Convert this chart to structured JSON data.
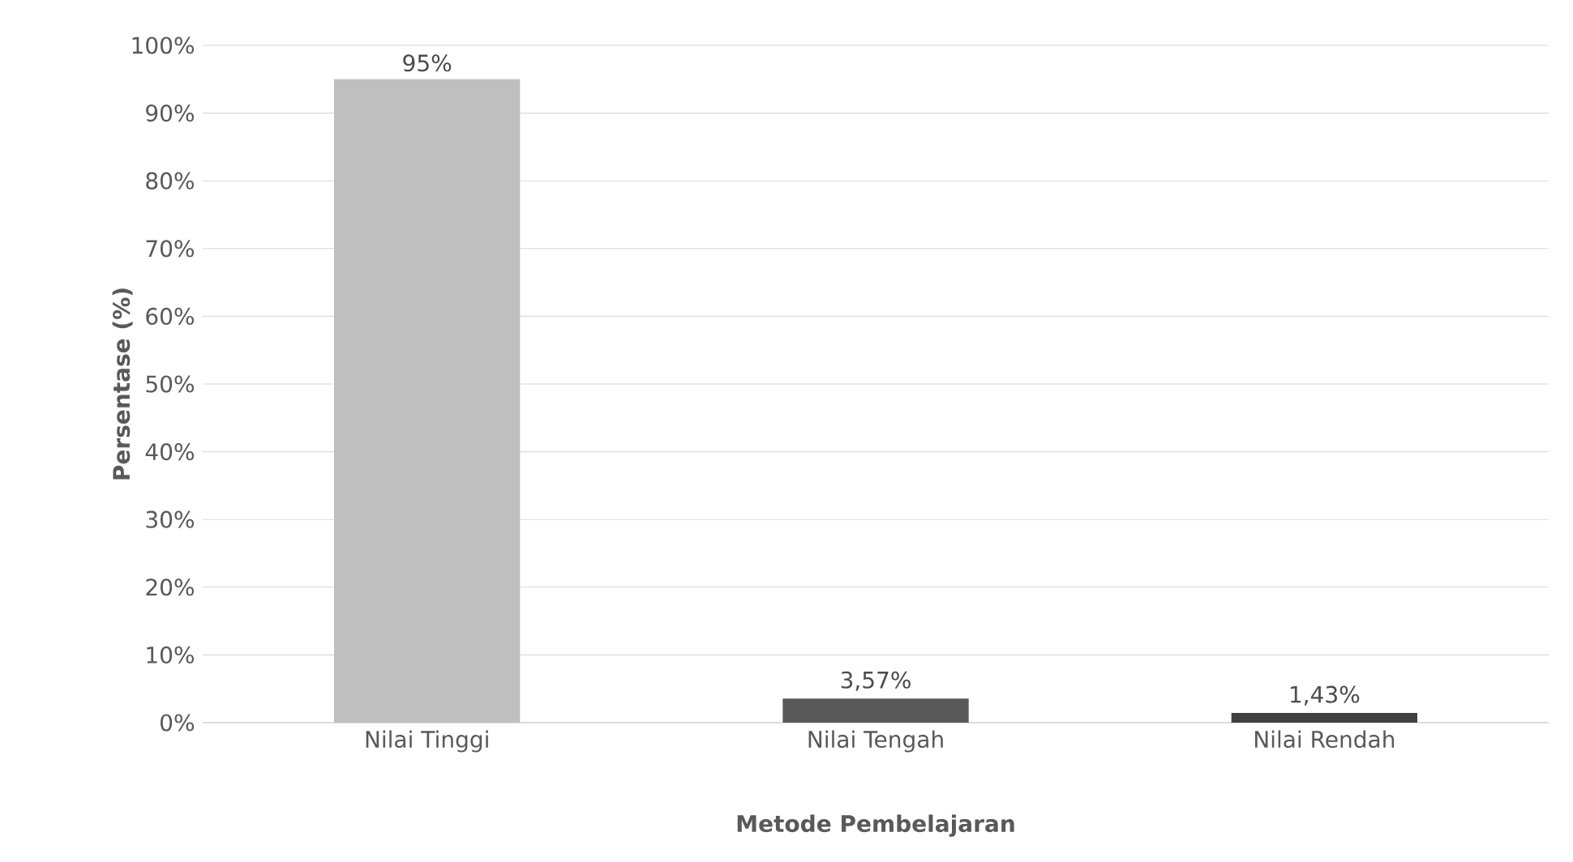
{
  "chart_data": {
    "type": "bar",
    "xlabel": "Metode Pembelajaran",
    "ylabel": "Persentase (%)",
    "categories": [
      "Nilai Tinggi",
      "Nilai Tengah",
      "Nilai Rendah"
    ],
    "values": [
      95,
      3.57,
      1.43
    ],
    "colors": [
      "#bfbfbf",
      "#595959",
      "#404040"
    ],
    "value_labels": [
      "95%",
      "3,57%",
      "1,43%"
    ],
    "ylim": [
      0,
      100
    ],
    "yticks": [
      {
        "value": 0,
        "label": "0%"
      },
      {
        "value": 10,
        "label": "10%"
      },
      {
        "value": 20,
        "label": "20%"
      },
      {
        "value": 30,
        "label": "30%"
      },
      {
        "value": 40,
        "label": "40%"
      },
      {
        "value": 50,
        "label": "50%"
      },
      {
        "value": 60,
        "label": "60%"
      },
      {
        "value": 70,
        "label": "70%"
      },
      {
        "value": 80,
        "label": "80%"
      },
      {
        "value": 90,
        "label": "90%"
      },
      {
        "value": 100,
        "label": "100%"
      }
    ],
    "grid": "y"
  }
}
